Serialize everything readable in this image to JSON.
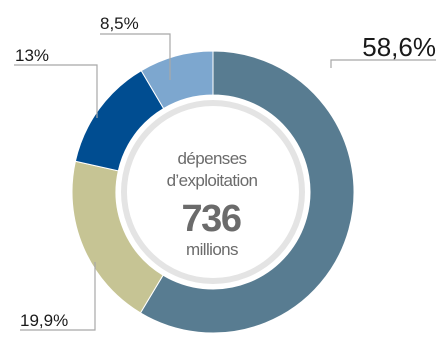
{
  "chart_data": {
    "type": "pie",
    "categories": [
      "58,6%",
      "19,9%",
      "13%",
      "8,5%"
    ],
    "values": [
      58.6,
      19.9,
      13.0,
      8.5
    ],
    "labels": [
      "58,6%",
      "19,9%",
      "13%",
      "8,5%"
    ],
    "colors": [
      "#587c91",
      "#c6c494",
      "#004d91",
      "#7da7cf"
    ],
    "center": {
      "line1": "dépenses",
      "line2": "d’exploitation",
      "value": "736",
      "unit": "millions"
    },
    "start_angle_deg": 0,
    "direction": "clockwise",
    "legend": "none"
  }
}
